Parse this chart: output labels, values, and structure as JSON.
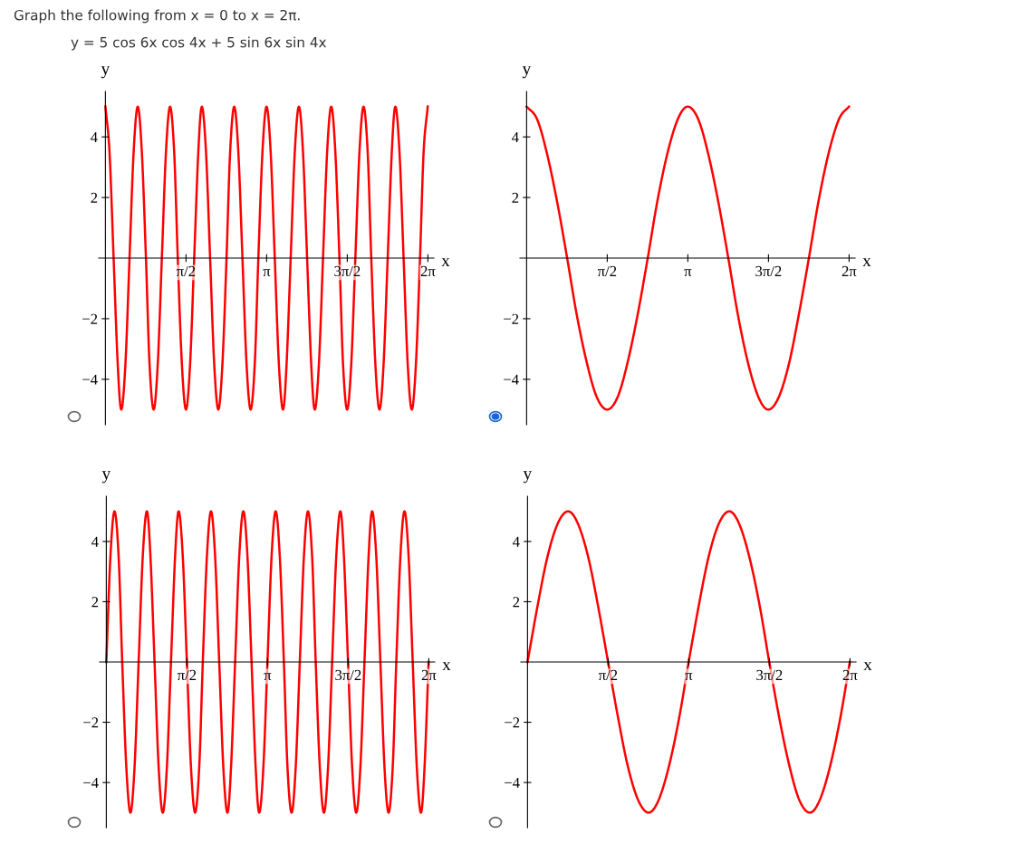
{
  "chart_data": [
    {
      "type": "line",
      "title": "Graph the following from x = 0 to x = 2π.",
      "subtitle": "y = 5 cos 6x cos 4x + 5 sin 6x sin 4x",
      "xlabel": "x",
      "ylabel": "y",
      "x": [
        0,
        0.08,
        0.16,
        0.24,
        0.31,
        0.39,
        0.47,
        0.55,
        0.63,
        0.71,
        0.79,
        0.86,
        0.94,
        1.02,
        1.1,
        1.18,
        1.26,
        1.34,
        1.41,
        1.49,
        1.57,
        1.65,
        1.73,
        1.81,
        1.88,
        1.96,
        2.04,
        2.12,
        2.2,
        2.28,
        2.36,
        2.43,
        2.51,
        2.59,
        2.67,
        2.75,
        2.83,
        2.91,
        2.98,
        3.06,
        3.14,
        3.22,
        3.3,
        3.38,
        3.46,
        3.53,
        3.61,
        3.69,
        3.77,
        3.85,
        3.93,
        4.01,
        4.08,
        4.16,
        4.24,
        4.32,
        4.4,
        4.48,
        4.56,
        4.63,
        4.71,
        4.79,
        4.87,
        4.95,
        5.03,
        5.11,
        5.18,
        5.26,
        5.34,
        5.42,
        5.5,
        5.58,
        5.65,
        5.73,
        5.81,
        5.89,
        5.97,
        6.05,
        6.13,
        6.2,
        6.28
      ],
      "series": [
        {
          "color": "#ff0000",
          "values": [
            5,
            3.5,
            0,
            -3.5,
            -5,
            -3.5,
            0,
            3.5,
            5,
            3.5,
            0,
            -3.5,
            -5,
            -3.5,
            0,
            3.5,
            5,
            3.5,
            0,
            -3.5,
            -5,
            -3.5,
            0,
            3.5,
            5,
            3.5,
            0,
            -3.5,
            -5,
            -3.5,
            0,
            3.5,
            5,
            3.5,
            0,
            -3.5,
            -5,
            -3.5,
            0,
            3.5,
            5,
            3.5,
            0,
            -3.5,
            -5,
            -3.5,
            0,
            3.5,
            5,
            3.5,
            0,
            -3.5,
            -5,
            -3.5,
            0,
            3.5,
            5,
            3.5,
            0,
            -3.5,
            -5,
            -3.5,
            0,
            3.5,
            5,
            3.5,
            0,
            -3.5,
            -5,
            -3.5,
            0,
            3.5,
            5,
            3.5,
            0,
            -3.5,
            -5,
            -3.5,
            0,
            3.5,
            5
          ]
        }
      ],
      "xlim": [
        -0.13,
        6.4
      ],
      "ylim": [
        -5.5,
        5.5
      ],
      "xticks": [
        {
          "value": 1.5708,
          "label": "π/2"
        },
        {
          "value": 3.1416,
          "label": "π"
        },
        {
          "value": 4.7124,
          "label": "3π/2"
        },
        {
          "value": 6.2832,
          "label": "2π"
        }
      ],
      "yticks": [
        -4,
        -2,
        2,
        4
      ],
      "grid": false,
      "marker": "none",
      "line_style": "solid"
    },
    {
      "type": "line",
      "xlabel": "x",
      "ylabel": "y",
      "x": [
        0,
        0.2,
        0.39,
        0.59,
        0.79,
        0.98,
        1.18,
        1.37,
        1.57,
        1.77,
        1.96,
        2.16,
        2.36,
        2.55,
        2.75,
        2.95,
        3.14,
        3.34,
        3.53,
        3.73,
        3.93,
        4.12,
        4.32,
        4.52,
        4.71,
        4.91,
        5.11,
        5.3,
        5.5,
        5.69,
        5.89,
        6.09,
        6.28
      ],
      "series": [
        {
          "color": "#ff0000",
          "values": [
            5,
            4.6,
            3.5,
            1.9,
            0,
            -1.9,
            -3.5,
            -4.6,
            -5,
            -4.6,
            -3.5,
            -1.9,
            0,
            1.9,
            3.5,
            4.6,
            5,
            4.6,
            3.5,
            1.9,
            0,
            -1.9,
            -3.5,
            -4.6,
            -5,
            -4.6,
            -3.5,
            -1.9,
            0,
            1.9,
            3.5,
            4.6,
            5
          ]
        }
      ],
      "xlim": [
        -0.13,
        6.4
      ],
      "ylim": [
        -5.5,
        5.5
      ],
      "xticks": [
        {
          "value": 1.5708,
          "label": "π/2"
        },
        {
          "value": 3.1416,
          "label": "π"
        },
        {
          "value": 4.7124,
          "label": "3π/2"
        },
        {
          "value": 6.2832,
          "label": "2π"
        }
      ],
      "yticks": [
        -4,
        -2,
        2,
        4
      ],
      "grid": false,
      "marker": "none",
      "line_style": "solid"
    },
    {
      "type": "line",
      "xlabel": "x",
      "ylabel": "y",
      "x": [
        0,
        0.08,
        0.16,
        0.24,
        0.31,
        0.39,
        0.47,
        0.55,
        0.63,
        0.71,
        0.79,
        0.86,
        0.94,
        1.02,
        1.1,
        1.18,
        1.26,
        1.34,
        1.41,
        1.49,
        1.57,
        1.65,
        1.73,
        1.81,
        1.88,
        1.96,
        2.04,
        2.12,
        2.2,
        2.28,
        2.36,
        2.43,
        2.51,
        2.59,
        2.67,
        2.75,
        2.83,
        2.91,
        2.98,
        3.06,
        3.14,
        3.22,
        3.3,
        3.38,
        3.46,
        3.53,
        3.61,
        3.69,
        3.77,
        3.85,
        3.93,
        4.01,
        4.08,
        4.16,
        4.24,
        4.32,
        4.4,
        4.48,
        4.56,
        4.63,
        4.71,
        4.79,
        4.87,
        4.95,
        5.03,
        5.11,
        5.18,
        5.26,
        5.34,
        5.42,
        5.5,
        5.58,
        5.65,
        5.73,
        5.81,
        5.89,
        5.97,
        6.05,
        6.13,
        6.2,
        6.28
      ],
      "series": [
        {
          "color": "#ff0000",
          "values": [
            0,
            3.5,
            5,
            3.5,
            0,
            -3.5,
            -5,
            -3.5,
            0,
            3.5,
            5,
            3.5,
            0,
            -3.5,
            -5,
            -3.5,
            0,
            3.5,
            5,
            3.5,
            0,
            -3.5,
            -5,
            -3.5,
            0,
            3.5,
            5,
            3.5,
            0,
            -3.5,
            -5,
            -3.5,
            0,
            3.5,
            5,
            3.5,
            0,
            -3.5,
            -5,
            -3.5,
            0,
            3.5,
            5,
            3.5,
            0,
            -3.5,
            -5,
            -3.5,
            0,
            3.5,
            5,
            3.5,
            0,
            -3.5,
            -5,
            -3.5,
            0,
            3.5,
            5,
            3.5,
            0,
            -3.5,
            -5,
            -3.5,
            0,
            3.5,
            5,
            3.5,
            0,
            -3.5,
            -5,
            -3.5,
            0,
            3.5,
            5,
            3.5,
            0,
            -3.5,
            -5,
            -3.5,
            0
          ]
        }
      ],
      "xlim": [
        -0.13,
        6.4
      ],
      "ylim": [
        -5.5,
        5.5
      ],
      "xticks": [
        {
          "value": 1.5708,
          "label": "π/2"
        },
        {
          "value": 3.1416,
          "label": "π"
        },
        {
          "value": 4.7124,
          "label": "3π/2"
        },
        {
          "value": 6.2832,
          "label": "2π"
        }
      ],
      "yticks": [
        -4,
        -2,
        2,
        4
      ],
      "grid": false,
      "marker": "none",
      "line_style": "solid"
    },
    {
      "type": "line",
      "xlabel": "x",
      "ylabel": "y",
      "x": [
        0,
        0.2,
        0.39,
        0.59,
        0.79,
        0.98,
        1.18,
        1.37,
        1.57,
        1.77,
        1.96,
        2.16,
        2.36,
        2.55,
        2.75,
        2.95,
        3.14,
        3.34,
        3.53,
        3.73,
        3.93,
        4.12,
        4.32,
        4.52,
        4.71,
        4.91,
        5.11,
        5.3,
        5.5,
        5.69,
        5.89,
        6.09,
        6.28
      ],
      "series": [
        {
          "color": "#ff0000",
          "values": [
            0,
            1.9,
            3.5,
            4.6,
            5,
            4.6,
            3.5,
            1.9,
            0,
            -1.9,
            -3.5,
            -4.6,
            -5,
            -4.6,
            -3.5,
            -1.9,
            0,
            1.9,
            3.5,
            4.6,
            5,
            4.6,
            3.5,
            1.9,
            0,
            -1.9,
            -3.5,
            -4.6,
            -5,
            -4.6,
            -3.5,
            -1.9,
            0
          ]
        }
      ],
      "xlim": [
        -0.13,
        6.4
      ],
      "ylim": [
        -5.5,
        5.5
      ],
      "xticks": [
        {
          "value": 1.5708,
          "label": "π/2"
        },
        {
          "value": 3.1416,
          "label": "π"
        },
        {
          "value": 4.7124,
          "label": "3π/2"
        },
        {
          "value": 6.2832,
          "label": "2π"
        }
      ],
      "yticks": [
        -4,
        -2,
        2,
        4
      ],
      "grid": false,
      "marker": "none",
      "line_style": "solid"
    }
  ]
}
